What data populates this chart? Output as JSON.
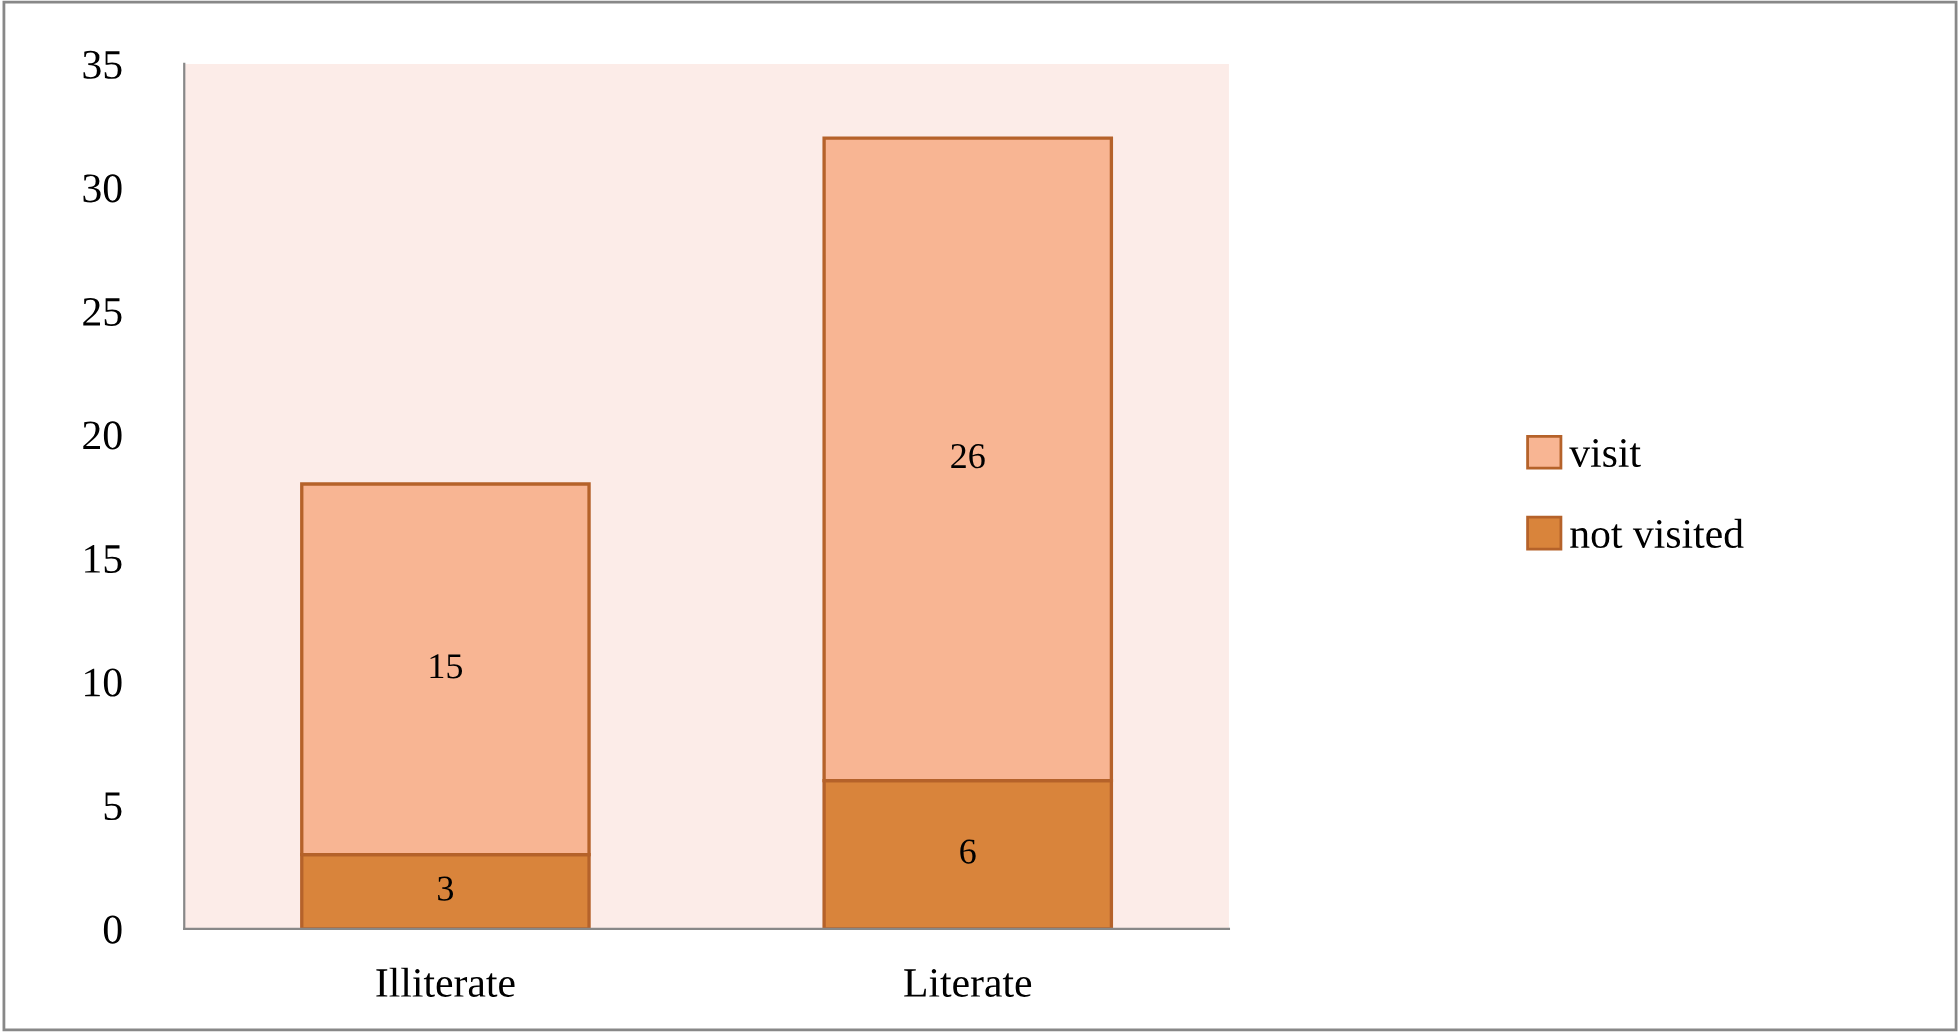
{
  "chart_data": {
    "type": "bar",
    "stacked": true,
    "categories": [
      "Illiterate",
      "Literate"
    ],
    "series": [
      {
        "name": "not visited",
        "color": "#d9843b",
        "values": [
          3,
          6
        ]
      },
      {
        "name": "visit",
        "color": "#f8b593",
        "values": [
          15,
          26
        ]
      }
    ],
    "ylim": [
      0,
      35
    ],
    "yticks": [
      0,
      5,
      10,
      15,
      20,
      25,
      30,
      35
    ],
    "grid": false,
    "legend": "right",
    "data_labels": true
  }
}
